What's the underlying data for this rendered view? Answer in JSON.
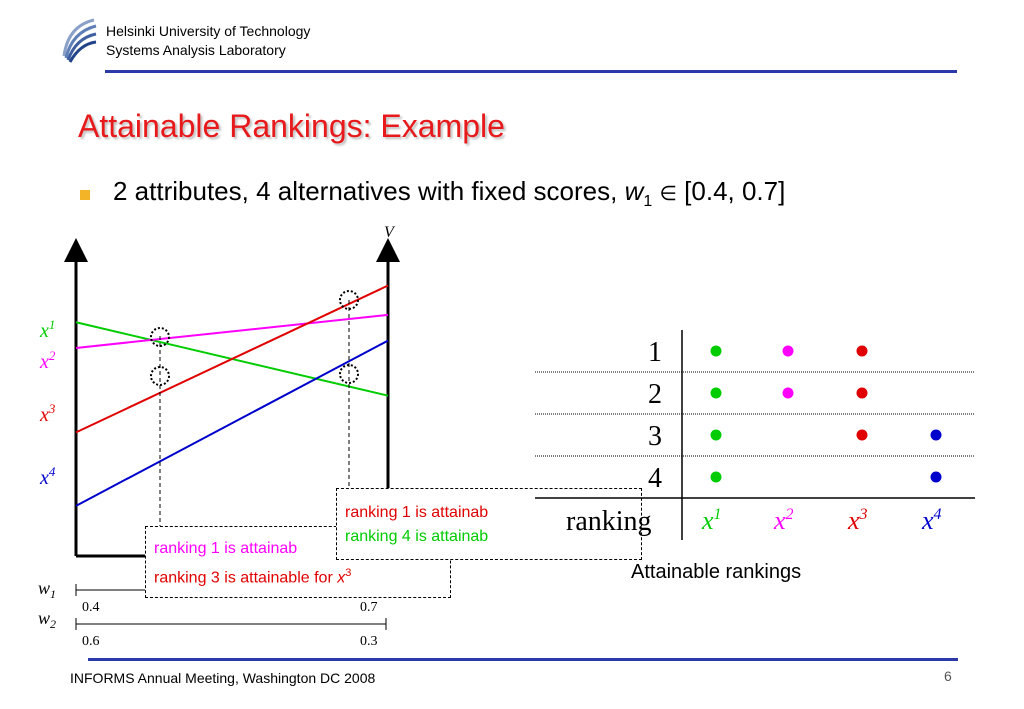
{
  "header": {
    "institution": "Helsinki University of Technology",
    "lab": "Systems Analysis Laboratory",
    "rule_color": "#2b3aa8"
  },
  "title": "Attainable Rankings: Example",
  "bullet": {
    "text": "2 attributes, 4 alternatives with fixed scores, ",
    "var": "w",
    "sub": "1",
    "symbol": "∈",
    "range": "[0.4, 0.7]"
  },
  "chart_data": {
    "type": "line",
    "ylabel": "V",
    "x_axes": [
      {
        "label": "w1",
        "ticks": [
          0.4,
          0.7
        ]
      },
      {
        "label": "w2",
        "ticks": [
          0.6,
          0.3
        ]
      }
    ],
    "series": [
      {
        "name": "x1",
        "color": "#00cc00",
        "values_at_w1_0": 0.8,
        "values_at_w1_1": 0.6
      },
      {
        "name": "x2",
        "color": "#ff00ff",
        "values_at_w1_0": 0.73,
        "values_at_w1_1": 0.82
      },
      {
        "name": "x3",
        "color": "#e00000",
        "values_at_w1_0": 0.5,
        "values_at_w1_1": 0.9
      },
      {
        "name": "x4",
        "color": "#0000cc",
        "values_at_w1_0": 0.3,
        "values_at_w1_1": 0.75
      }
    ]
  },
  "series_labels": [
    {
      "base": "x",
      "sup": "1",
      "color": "#00cc00"
    },
    {
      "base": "x",
      "sup": "2",
      "color": "#ff00ff"
    },
    {
      "base": "x",
      "sup": "3",
      "color": "#e00000"
    },
    {
      "base": "x",
      "sup": "4",
      "color": "#0000cc"
    }
  ],
  "axis_labels": {
    "v": "V",
    "w1": "w",
    "w1_sub": "1",
    "w2": "w",
    "w2_sub": "2",
    "w1_left": "0.4",
    "w1_right": "0.7",
    "w2_left": "0.6",
    "w2_right": "0.3"
  },
  "callouts": {
    "left": {
      "line1": "ranking 1 is attainab",
      "line1_color": "#ff00ff",
      "line2_text": "ranking 3 is attainable for ",
      "line2_var": "x",
      "line2_sup": "3",
      "line2_color": "#e00000"
    },
    "right": {
      "line1": "ranking 1 is attainab",
      "line1_color": "#e00000",
      "line2": "ranking 4 is attainab",
      "line2_color": "#00cc00"
    }
  },
  "table": {
    "rows": [
      "1",
      "2",
      "3",
      "4"
    ],
    "footer_label": "ranking",
    "columns": [
      {
        "base": "x",
        "sup": "1",
        "color": "#00cc00"
      },
      {
        "base": "x",
        "sup": "2",
        "color": "#ff00ff"
      },
      {
        "base": "x",
        "sup": "3",
        "color": "#e00000"
      },
      {
        "base": "x",
        "sup": "4",
        "color": "#0000cc"
      }
    ],
    "dots": [
      [
        true,
        true,
        true,
        false
      ],
      [
        true,
        true,
        true,
        false
      ],
      [
        true,
        false,
        true,
        true
      ],
      [
        true,
        false,
        false,
        true
      ]
    ],
    "caption": "Attainable rankings"
  },
  "footer": {
    "text": "INFORMS Annual Meeting, Washington DC 2008",
    "page": "6"
  }
}
